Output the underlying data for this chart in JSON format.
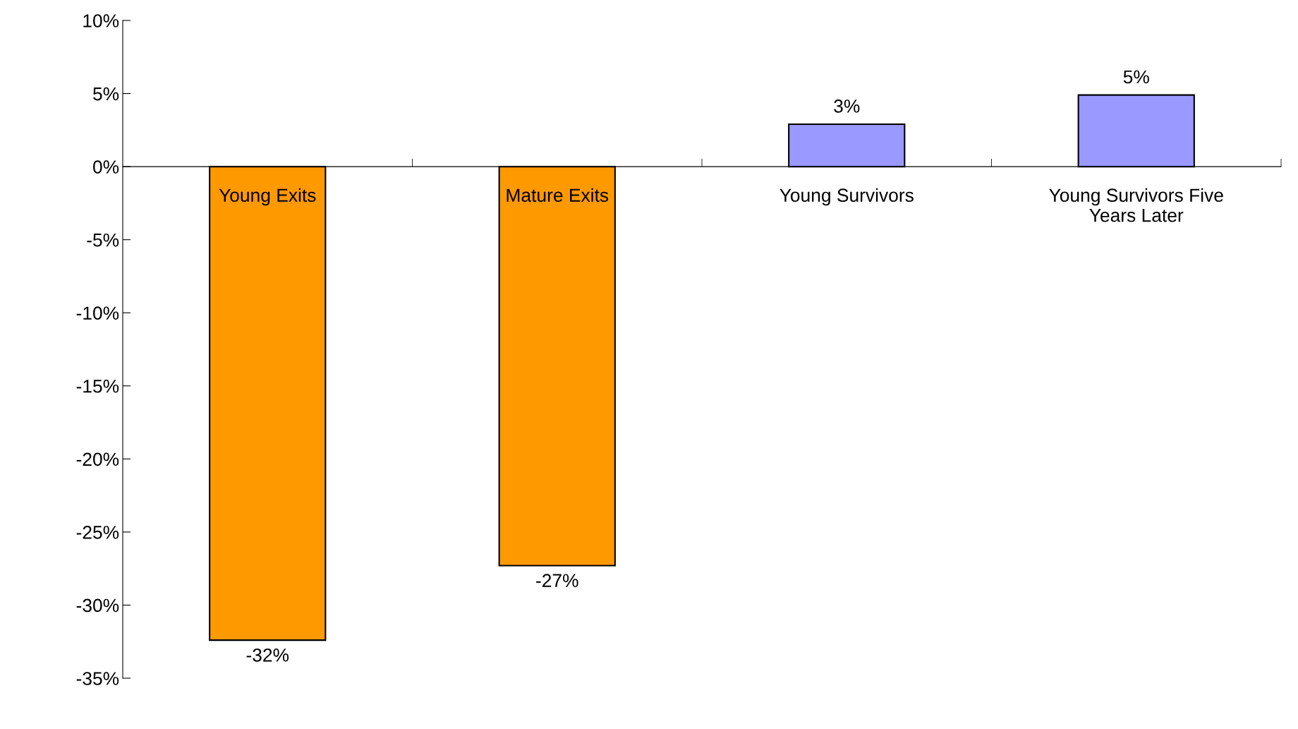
{
  "chart_data": {
    "type": "bar",
    "categories": [
      "Young Exits",
      "Mature Exits",
      "Young Survivors",
      "Young Survivors Five\nYears Later"
    ],
    "values": [
      -32.4,
      -27.3,
      2.9,
      4.9
    ],
    "colors": [
      "#ff9900",
      "#ff9900",
      "#9999ff",
      "#9999ff"
    ],
    "value_labels": [
      "-32%",
      "-27%",
      "3%",
      "5%"
    ],
    "ylim": [
      -35,
      10
    ],
    "yticks": [
      {
        "value": 10,
        "label": "10%"
      },
      {
        "value": 5,
        "label": "5%"
      },
      {
        "value": 0,
        "label": "0%"
      },
      {
        "value": -5,
        "label": "-5%"
      },
      {
        "value": -10,
        "label": "-10%"
      },
      {
        "value": -15,
        "label": "-15%"
      },
      {
        "value": -20,
        "label": "-20%"
      },
      {
        "value": -25,
        "label": "-25%"
      },
      {
        "value": -30,
        "label": "-30%"
      },
      {
        "value": -35,
        "label": "-35%"
      }
    ],
    "grid": false,
    "legend": false
  }
}
